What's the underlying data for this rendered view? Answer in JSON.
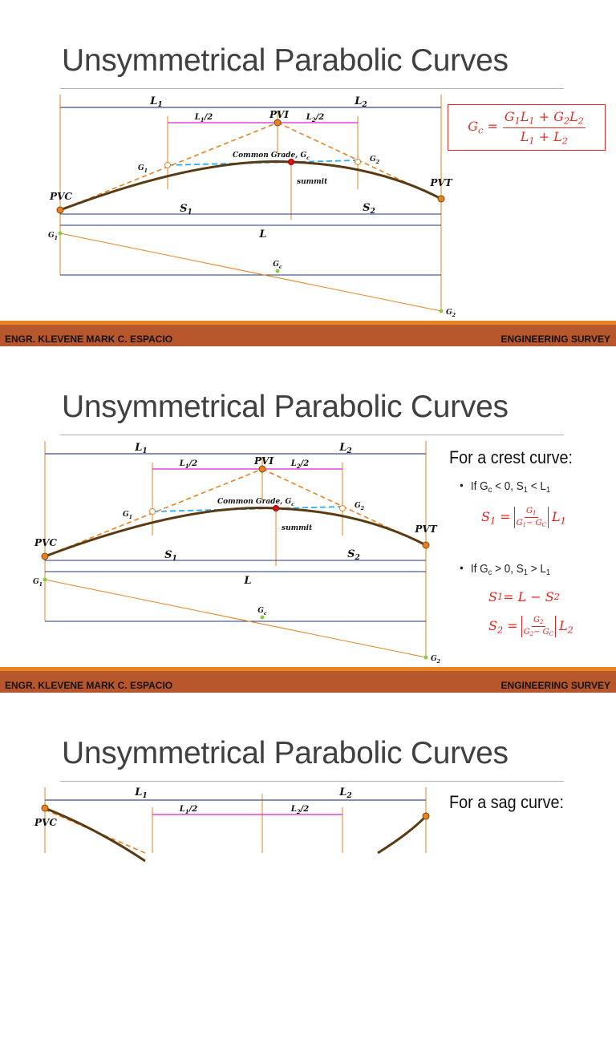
{
  "slides": [
    {
      "title": "Unsymmetrical Parabolic Curves"
    },
    {
      "title": "Unsymmetrical Parabolic Curves"
    },
    {
      "title": "Unsymmetrical Parabolic Curves"
    }
  ],
  "footer": {
    "left": "ENGR. KLEVENE MARK C. ESPACIO",
    "right": "ENGINEERING SURVEY"
  },
  "diagram": {
    "L1": "L_1",
    "L2": "L_2",
    "L1half": "L_1/2",
    "L2half": "L_2/2",
    "PVI": "PVI",
    "common_grade": "Common Grade, G_c",
    "G1": "G_1",
    "G2": "G_2",
    "summit": "summit",
    "PVC": "PVC",
    "PVT": "PVT",
    "S1": "S_1",
    "S2": "S_2",
    "L": "L",
    "Gc": "G_c",
    "colors": {
      "curve": "#5a3a12",
      "tangent": "#e8821e",
      "common_grade": "#2ab0f0",
      "half_length": "#e020d0",
      "dimension": "#1f3a7a",
      "summit": "#e01010"
    }
  },
  "formula_main": {
    "lhs": "G_c =",
    "num": "G_1L_1 + G_2L_2",
    "den": "L_1 + L_2"
  },
  "crest": {
    "heading": "For a crest curve:",
    "case1": "If G_c < 0, S_1 < L_1",
    "eq1": {
      "lhs": "S_1 =",
      "num": "G_1",
      "den": "G_1− G_C",
      "rhs": "L_1"
    },
    "case2": "If G_c > 0, S_1 > L_1",
    "eq2": "S_1 = L  −  S_2",
    "eq3": {
      "lhs": "S_2 =",
      "num": "G_2",
      "den": "G_2− G_C",
      "rhs": "L_2"
    }
  },
  "sag": {
    "heading": "For a sag curve:"
  }
}
